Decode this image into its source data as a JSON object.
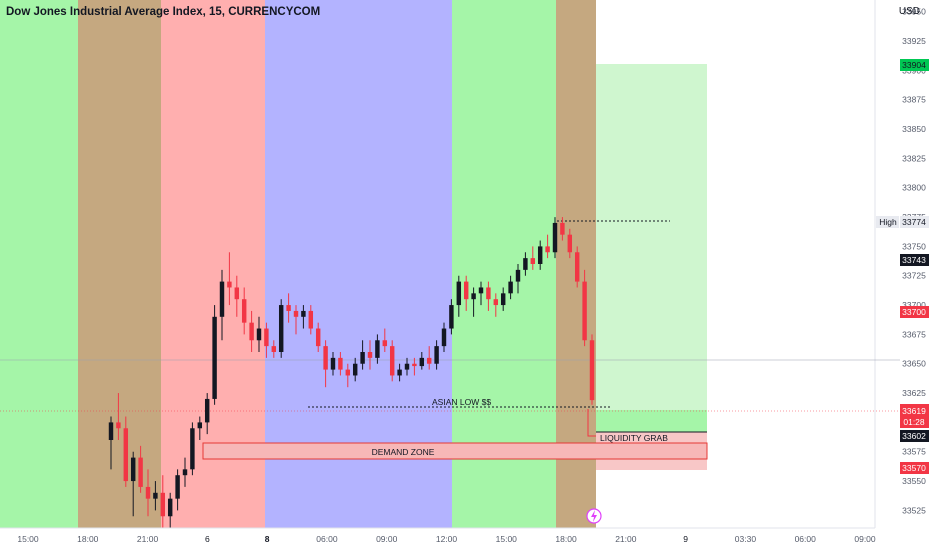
{
  "header": {
    "title": "Dow Jones Industrial Average Index, 15, CURRENCYCOM",
    "currency": "USD"
  },
  "colors": {
    "up": "#131722",
    "down": "#f23645",
    "session_green": "#a5f5a8",
    "session_brown": "#c5a880",
    "session_red": "#ffafaf",
    "session_blue": "#b3b3ff",
    "target_zone": "#ccf5cc",
    "stop_zone": "#f8c7c7",
    "price_label": "#f23645",
    "high_label": "#e8eaf0"
  },
  "annotations": {
    "asian_low": "ASIAN LOW $$",
    "demand_zone": "DEMAND ZONE",
    "liquidity_grab": "LIQUIDITY GRAB"
  },
  "price_labels": {
    "target": "33904",
    "high_tag": "High",
    "high": "33774",
    "level_1": "33743",
    "level_2": "33700",
    "current": "33619",
    "countdown": "01:28",
    "entry": "33602",
    "stop": "33570"
  },
  "chart_data": {
    "type": "candlestick",
    "title": "Dow Jones Industrial Average Index, 15, CURRENCYCOM",
    "ylabel": "USD",
    "ylim": [
      33510,
      33960
    ],
    "y_ticks": [
      33525,
      33550,
      33575,
      33600,
      33625,
      33650,
      33675,
      33700,
      33725,
      33750,
      33775,
      33800,
      33825,
      33850,
      33875,
      33900,
      33925,
      33950
    ],
    "x_ticks": [
      "15:00",
      "18:00",
      "21:00",
      "6",
      "8",
      "06:00",
      "09:00",
      "12:00",
      "15:00",
      "18:00",
      "21:00",
      "9",
      "03:30",
      "06:00",
      "09:00"
    ],
    "levels": {
      "asian_low": 33629,
      "demand_zone": [
        33578,
        33594
      ],
      "target": 33904,
      "entry": 33602,
      "stop": 33570,
      "high": 33774
    },
    "series": [
      {
        "values": [
          [
            33585,
            33605,
            33560,
            33600
          ],
          [
            33600,
            33625,
            33585,
            33595
          ],
          [
            33595,
            33605,
            33545,
            33550
          ],
          [
            33550,
            33575,
            33520,
            33570
          ],
          [
            33570,
            33580,
            33540,
            33545
          ],
          [
            33545,
            33560,
            33520,
            33535
          ],
          [
            33535,
            33550,
            33525,
            33540
          ],
          [
            33540,
            33555,
            33510,
            33520
          ],
          [
            33520,
            33540,
            33500,
            33535
          ],
          [
            33535,
            33560,
            33525,
            33555
          ],
          [
            33555,
            33570,
            33545,
            33560
          ],
          [
            33560,
            33600,
            33555,
            33595
          ],
          [
            33595,
            33605,
            33585,
            33600
          ],
          [
            33600,
            33625,
            33590,
            33620
          ],
          [
            33620,
            33700,
            33615,
            33690
          ],
          [
            33690,
            33730,
            33670,
            33720
          ],
          [
            33720,
            33745,
            33700,
            33715
          ],
          [
            33715,
            33725,
            33690,
            33705
          ],
          [
            33705,
            33715,
            33675,
            33685
          ],
          [
            33685,
            33695,
            33660,
            33670
          ],
          [
            33670,
            33690,
            33660,
            33680
          ],
          [
            33680,
            33685,
            33655,
            33665
          ],
          [
            33665,
            33670,
            33655,
            33660
          ],
          [
            33660,
            33705,
            33655,
            33700
          ],
          [
            33700,
            33710,
            33685,
            33695
          ],
          [
            33695,
            33700,
            33675,
            33690
          ],
          [
            33690,
            33700,
            33680,
            33695
          ],
          [
            33695,
            33700,
            33675,
            33680
          ],
          [
            33680,
            33685,
            33660,
            33665
          ],
          [
            33665,
            33670,
            33630,
            33645
          ],
          [
            33645,
            33660,
            33640,
            33655
          ],
          [
            33655,
            33660,
            33640,
            33645
          ],
          [
            33645,
            33650,
            33630,
            33640
          ],
          [
            33640,
            33655,
            33635,
            33650
          ],
          [
            33650,
            33670,
            33645,
            33660
          ],
          [
            33660,
            33670,
            33645,
            33655
          ],
          [
            33655,
            33675,
            33650,
            33670
          ],
          [
            33670,
            33680,
            33660,
            33665
          ],
          [
            33665,
            33670,
            33635,
            33640
          ],
          [
            33640,
            33650,
            33635,
            33645
          ],
          [
            33645,
            33655,
            33640,
            33650
          ],
          [
            33650,
            33655,
            33640,
            33648
          ],
          [
            33648,
            33660,
            33645,
            33655
          ],
          [
            33655,
            33665,
            33645,
            33650
          ],
          [
            33650,
            33670,
            33645,
            33665
          ],
          [
            33665,
            33685,
            33660,
            33680
          ],
          [
            33680,
            33705,
            33675,
            33700
          ],
          [
            33700,
            33725,
            33690,
            33720
          ],
          [
            33720,
            33725,
            33695,
            33705
          ],
          [
            33705,
            33715,
            33690,
            33710
          ],
          [
            33710,
            33720,
            33700,
            33715
          ],
          [
            33715,
            33720,
            33695,
            33705
          ],
          [
            33705,
            33710,
            33690,
            33700
          ],
          [
            33700,
            33715,
            33695,
            33710
          ],
          [
            33710,
            33725,
            33705,
            33720
          ],
          [
            33720,
            33735,
            33710,
            33730
          ],
          [
            33730,
            33745,
            33725,
            33740
          ],
          [
            33740,
            33750,
            33730,
            33735
          ],
          [
            33735,
            33755,
            33730,
            33750
          ],
          [
            33750,
            33760,
            33740,
            33745
          ],
          [
            33745,
            33775,
            33740,
            33770
          ],
          [
            33770,
            33775,
            33755,
            33760
          ],
          [
            33760,
            33765,
            33740,
            33745
          ],
          [
            33745,
            33750,
            33715,
            33720
          ],
          [
            33720,
            33730,
            33665,
            33670
          ],
          [
            33670,
            33675,
            33615,
            33619
          ]
        ]
      }
    ]
  }
}
